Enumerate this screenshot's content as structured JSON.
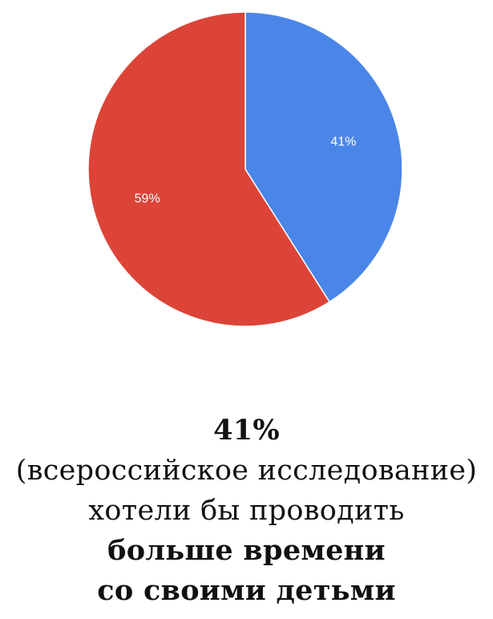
{
  "chart_data": {
    "type": "pie",
    "start_angle": "top, clockwise",
    "slices": [
      {
        "value": 41,
        "label": "41%",
        "color": "#4a86e8"
      },
      {
        "value": 59,
        "label": "59%",
        "color": "#dc4438"
      }
    ],
    "legend": "none"
  },
  "caption": {
    "line1": "41%",
    "line2": "(всероссийское исследование)",
    "line3": "хотели бы проводить",
    "line4": "больше времени",
    "line5": "со своими детьми"
  }
}
